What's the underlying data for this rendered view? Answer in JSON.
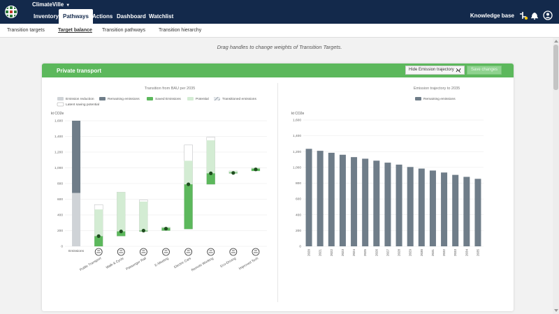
{
  "app": {
    "name": "ClimateVille"
  },
  "nav": {
    "tabs": [
      {
        "label": "Inventory"
      },
      {
        "label": "Pathways"
      },
      {
        "label": "Actions"
      },
      {
        "label": "Dashboard"
      },
      {
        "label": "Watchlist"
      }
    ],
    "active": "Pathways",
    "knowledge_base": "Knowledge base"
  },
  "subnav": {
    "tabs": [
      {
        "label": "Transition targets"
      },
      {
        "label": "Target balance"
      },
      {
        "label": "Transition pathways"
      },
      {
        "label": "Transition hierarchy"
      }
    ],
    "active": "Target balance"
  },
  "hint": "Drag handles to change weights of Transition Targets.",
  "card": {
    "title": "Private transport",
    "hide_trajectory_label": "Hide Emission trajectory",
    "save_label": "Save changes"
  },
  "colors": {
    "nav_bg": "#13294b",
    "card_header": "#5cb85c",
    "emission_reduction": "#cfd3d7",
    "remaining": "#6f7d89",
    "saved": "#5cb85c",
    "potential": "#d3ecd3",
    "handle": "#1f4d1f"
  },
  "chart_data": [
    {
      "type": "bar",
      "title": "Transition from BAU per 2035",
      "ylabel": "kt CO2e",
      "ylim": [
        0,
        1600
      ],
      "yticks": [
        "0",
        "200",
        "400",
        "600",
        "800",
        "1,000",
        "1,200",
        "1,400",
        "1,600"
      ],
      "legend": [
        {
          "name": "Emission reduction",
          "color": "#cfd3d7",
          "style": "solid"
        },
        {
          "name": "Remaining emissions",
          "color": "#6f7d89",
          "style": "solid"
        },
        {
          "name": "Saved Emissions",
          "color": "#5cb85c",
          "style": "solid"
        },
        {
          "name": "Potential",
          "color": "#d3ecd3",
          "style": "solid"
        },
        {
          "name": "Transitioned emissions",
          "color": "#b5bcc3",
          "style": "hatch"
        },
        {
          "name": "Latent saving potential",
          "color": "#ffffff",
          "style": "outline"
        }
      ],
      "legend_position": "top",
      "categories": [
        "Emissions",
        "Public Transport",
        "Walk & Cycle",
        "Passenger Rail",
        "E-Meeting",
        "Electric Cars",
        "Remote Working",
        "Eco-Driving",
        "Improved Tech"
      ],
      "icons": [
        "",
        "bus-icon",
        "walk-cycle-icon",
        "train-icon",
        "e-meeting-icon",
        "electric-car-icon",
        "remote-working-icon",
        "eco-driving-icon",
        "improved-tech-icon"
      ],
      "emissions_bar": {
        "emission_reduction": 680,
        "remaining_emissions": 920
      },
      "transition_bars": [
        {
          "saved_from": 0,
          "saved_to": 130,
          "potential_from": 130,
          "potential_to": 470,
          "transitioned_from": 470,
          "transitioned_to": 530,
          "handle": 130
        },
        {
          "saved_from": 130,
          "saved_to": 190,
          "potential_from": 190,
          "potential_to": 690,
          "transitioned_from": 0,
          "transitioned_to": 0,
          "handle": 190
        },
        {
          "saved_from": 190,
          "saved_to": 200,
          "potential_from": 200,
          "potential_to": 570,
          "transitioned_from": 570,
          "transitioned_to": 590,
          "handle": 200
        },
        {
          "saved_from": 200,
          "saved_to": 235,
          "potential_from": 235,
          "potential_to": 245,
          "transitioned_from": 0,
          "transitioned_to": 0,
          "handle": 225
        },
        {
          "saved_from": 220,
          "saved_to": 790,
          "potential_from": 790,
          "potential_to": 1090,
          "transitioned_from": 1090,
          "transitioned_to": 1290,
          "handle": 790
        },
        {
          "saved_from": 790,
          "saved_to": 930,
          "potential_from": 930,
          "potential_to": 1350,
          "transitioned_from": 1350,
          "transitioned_to": 1390,
          "handle": 930
        },
        {
          "saved_from": 930,
          "saved_to": 940,
          "potential_from": 940,
          "potential_to": 960,
          "transitioned_from": 0,
          "transitioned_to": 0,
          "handle": 935
        },
        {
          "saved_from": 960,
          "saved_to": 990,
          "potential_from": 990,
          "potential_to": 1000,
          "transitioned_from": 0,
          "transitioned_to": 0,
          "handle": 980
        }
      ]
    },
    {
      "type": "bar",
      "title": "Emission trajectory to 2035",
      "ylabel": "kt CO2e",
      "ylim": [
        0,
        1600
      ],
      "yticks": [
        "0",
        "200",
        "400",
        "600",
        "800",
        "1,000",
        "1,200",
        "1,400",
        "1,600"
      ],
      "legend": [
        {
          "name": "Remaining emissions",
          "color": "#6f7d89"
        }
      ],
      "legend_position": "top",
      "categories": [
        "2020",
        "2021",
        "2022",
        "2023",
        "2024",
        "2025",
        "2026",
        "2027",
        "2028",
        "2029",
        "2030",
        "2031",
        "2032",
        "2033",
        "2034",
        "2035"
      ],
      "values": [
        1235,
        1210,
        1185,
        1160,
        1130,
        1110,
        1085,
        1060,
        1035,
        1005,
        985,
        960,
        935,
        905,
        880,
        855
      ]
    }
  ]
}
